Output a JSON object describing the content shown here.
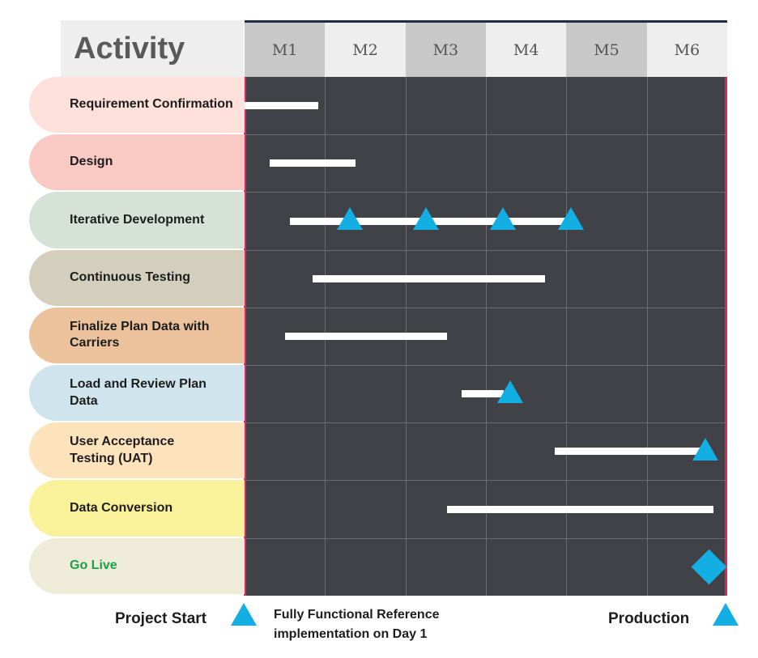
{
  "chart_data": {
    "type": "gantt",
    "title": "",
    "header_label": "Activity",
    "months": [
      "M1",
      "M2",
      "M3",
      "M4",
      "M5",
      "M6"
    ],
    "x_range": [
      0,
      6
    ],
    "tasks": [
      {
        "label": "Requirement Confirmation",
        "start": 0.0,
        "end": 0.92,
        "milestones": [],
        "label_color": "#1d1d1d",
        "row_color": "#fde1da"
      },
      {
        "label": "Design",
        "start": 0.31,
        "end": 1.38,
        "milestones": [],
        "label_color": "#1d1d1d",
        "row_color": "#f9cac4"
      },
      {
        "label": "Iterative Development",
        "start": 0.56,
        "end": 4.02,
        "milestones": [
          1.31,
          2.26,
          3.21,
          4.06
        ],
        "label_color": "#1d1d1d",
        "row_color": "#d6e2d6"
      },
      {
        "label": "Continuous Testing",
        "start": 0.85,
        "end": 3.74,
        "milestones": [],
        "label_color": "#1d1d1d",
        "row_color": "#d4cebc"
      },
      {
        "label": "Finalize Plan Data with Carriers",
        "start": 0.5,
        "end": 2.52,
        "milestones": [],
        "label_color": "#1d1d1d",
        "row_color": "#ebc29c"
      },
      {
        "label": "Load and Review Plan Data",
        "start": 2.7,
        "end": 3.22,
        "milestones": [
          3.3
        ],
        "label_color": "#1d1d1d",
        "row_color": "#cfe4ed"
      },
      {
        "label": "User Acceptance Testing (UAT)",
        "start": 3.86,
        "end": 5.68,
        "milestones": [
          5.73
        ],
        "label_color": "#1d1d1d",
        "row_color": "#fde3bb"
      },
      {
        "label": "Data Conversion",
        "start": 2.52,
        "end": 5.83,
        "milestones": [],
        "label_color": "#1d1d1d",
        "row_color": "#faf29b"
      },
      {
        "label": "Go Live",
        "start": null,
        "end": null,
        "milestones": [],
        "diamond": 5.77,
        "label_color": "#16a34a",
        "row_color": "#eeebd8"
      }
    ],
    "legend": [
      {
        "label": "Project Start"
      },
      {
        "label": "Fully Functional Reference implementation on Day 1"
      },
      {
        "label": "Production"
      }
    ],
    "colors": {
      "grid_bg": "#404247",
      "bar": "#ffffff",
      "milestone": "#13aee2",
      "edge": "#e0245e"
    }
  }
}
